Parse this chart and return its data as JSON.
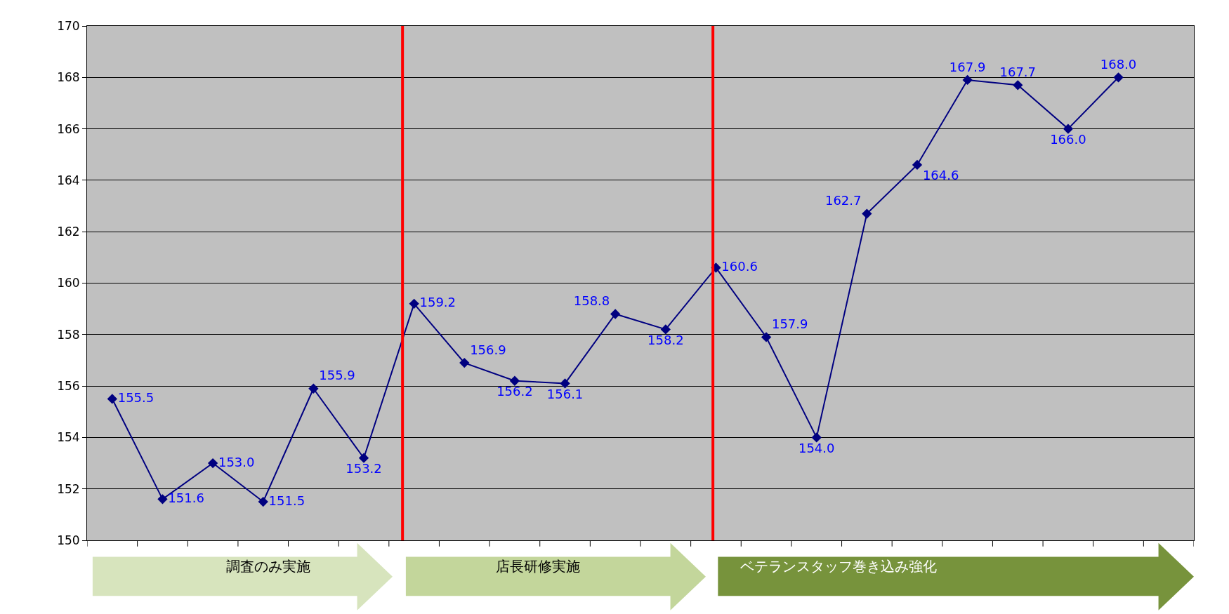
{
  "chart_data": {
    "type": "line",
    "categories": [
      null,
      null,
      null,
      null,
      null,
      null,
      null,
      null,
      null,
      null,
      null,
      null,
      null,
      null,
      null,
      null,
      null,
      null,
      null,
      null,
      null,
      null
    ],
    "series": [
      {
        "color": "#000080",
        "values": [
          155.5,
          151.6,
          153.0,
          151.5,
          155.9,
          153.2,
          159.2,
          156.9,
          156.2,
          156.1,
          158.8,
          158.2,
          160.6,
          157.9,
          154.0,
          162.7,
          164.6,
          167.9,
          167.7,
          166.0,
          168.0,
          null
        ],
        "value_labels": [
          "155.5",
          "151.6",
          "153.0",
          "151.5",
          "155.9",
          "153.2",
          "159.2",
          "156.9",
          "156.2",
          "156.1",
          "158.8",
          "158.2",
          "160.6",
          "157.9",
          "154.0",
          "162.7",
          "164.6",
          "167.9",
          "167.7",
          "166.0",
          "168.0",
          null
        ]
      }
    ],
    "ylim": [
      150,
      170
    ],
    "yticks": [
      150,
      152,
      154,
      156,
      158,
      160,
      162,
      164,
      166,
      168,
      170
    ],
    "tick_labels": "y",
    "grid": "y",
    "marker": "diamond",
    "line_style": "solid",
    "ref_lines": [
      {
        "axis": "x",
        "color": "#ff0000"
      },
      {
        "axis": "x",
        "color": "#ff0000"
      }
    ],
    "annotations": [
      "調査のみ実施",
      "店長研修実施",
      "ベテランスタッフ巻き込み強化"
    ]
  }
}
